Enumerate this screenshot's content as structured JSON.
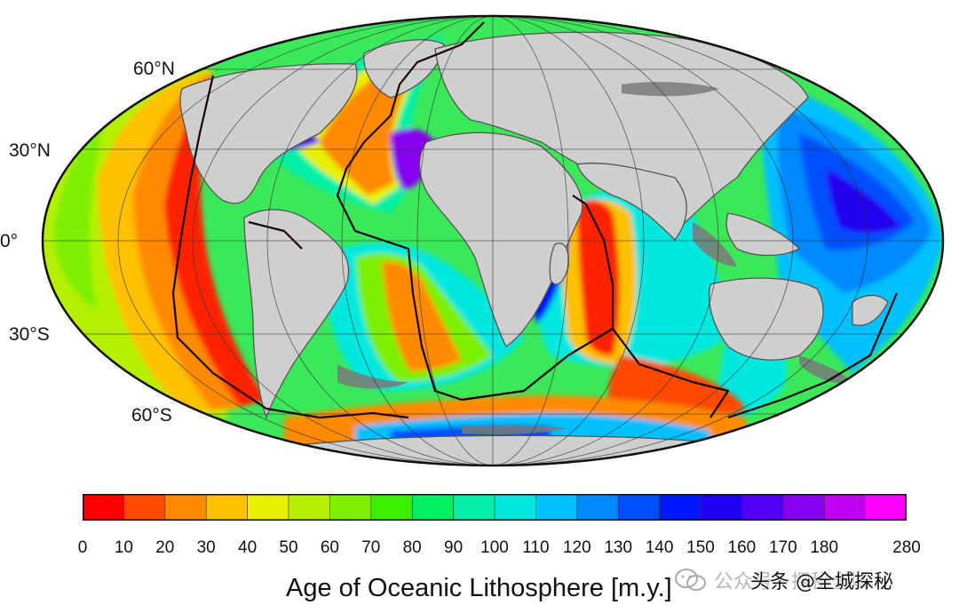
{
  "map": {
    "latitude_labels": [
      "60°N",
      "30°N",
      "0°",
      "30°S",
      "60°S"
    ]
  },
  "legend": {
    "caption": "Age of Oceanic Lithosphere [m.y.]",
    "tick_labels": [
      "0",
      "10",
      "20",
      "30",
      "40",
      "50",
      "60",
      "70",
      "80",
      "90",
      "100",
      "110",
      "120",
      "130",
      "140",
      "150",
      "160",
      "170",
      "180",
      "280"
    ],
    "colors": [
      "#ff0000",
      "#ff4a00",
      "#ff8a00",
      "#ffc000",
      "#e8f000",
      "#b4f000",
      "#7cf000",
      "#38f000",
      "#00f060",
      "#00f0a8",
      "#00e8e0",
      "#00c0ff",
      "#0088ff",
      "#0050ff",
      "#0018ff",
      "#2000f0",
      "#5000f0",
      "#8800f0",
      "#c000f0",
      "#ff00ff"
    ]
  },
  "watermark": {
    "faint_text": "公众号 · 探秘全城",
    "strong_text": "头条 @全城探秘"
  }
}
